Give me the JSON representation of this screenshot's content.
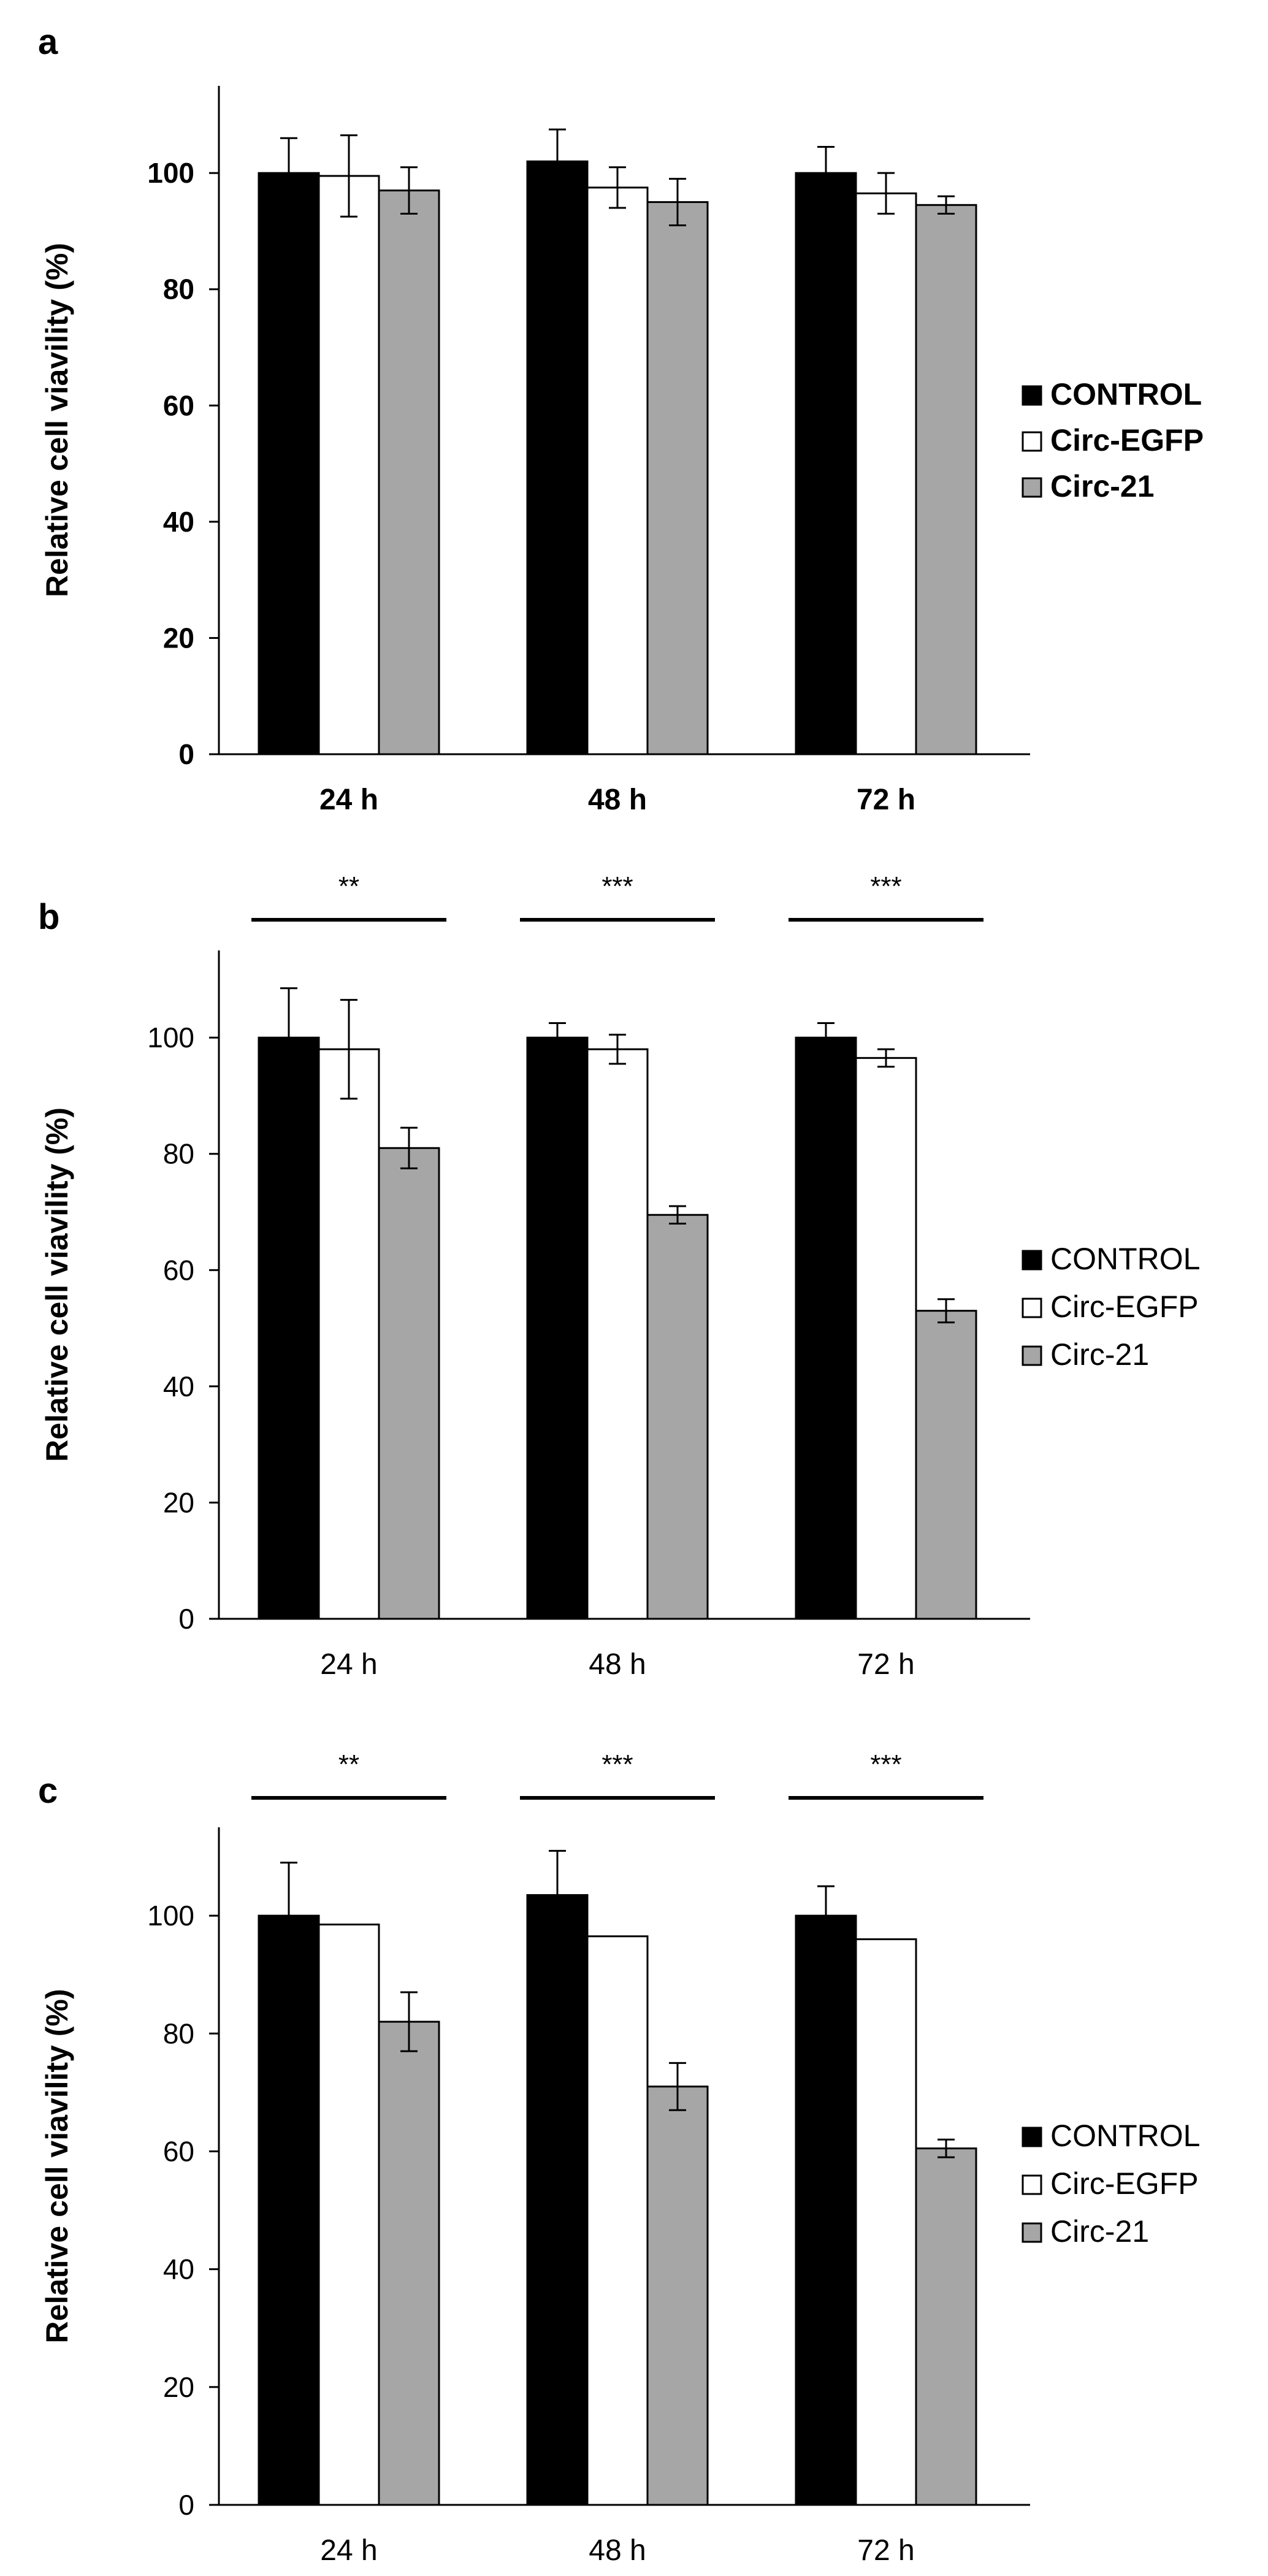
{
  "chart_data": [
    {
      "type": "bar",
      "panel_label": "a",
      "categories": [
        "24 h",
        "48 h",
        "72 h"
      ],
      "series": [
        {
          "name": "CONTROL",
          "color": "#000000",
          "values": [
            100,
            102,
            100
          ],
          "errors": [
            6,
            5.5,
            4.5
          ]
        },
        {
          "name": "Circ-EGFP",
          "color": "#ffffff",
          "values": [
            99.5,
            97.5,
            96.5
          ],
          "errors": [
            7,
            3.5,
            3.5
          ]
        },
        {
          "name": "Circ-21",
          "color": "#a6a6a6",
          "values": [
            97,
            95,
            94.5
          ],
          "errors": [
            4,
            4,
            1.5
          ]
        }
      ],
      "ylabel": "Relative cell viavility (%)",
      "yticks": [
        "0",
        "20",
        "40",
        "60",
        "80",
        "100"
      ],
      "ylim": [
        0,
        115
      ],
      "significance": [],
      "bold_labels": true,
      "legend_position": "right"
    },
    {
      "type": "bar",
      "panel_label": "b",
      "categories": [
        "24 h",
        "48 h",
        "72 h"
      ],
      "series": [
        {
          "name": "CONTROL",
          "color": "#000000",
          "values": [
            100,
            100,
            100
          ],
          "errors": [
            8.5,
            2.5,
            2.5
          ]
        },
        {
          "name": "Circ-EGFP",
          "color": "#ffffff",
          "values": [
            98,
            98,
            96.5
          ],
          "errors": [
            8.5,
            2.5,
            1.5
          ]
        },
        {
          "name": "Circ-21",
          "color": "#a6a6a6",
          "values": [
            81,
            69.5,
            53
          ],
          "errors": [
            3.5,
            1.5,
            2
          ]
        }
      ],
      "ylabel": "Relative cell viavility (%)",
      "yticks": [
        "0",
        "20",
        "40",
        "60",
        "80",
        "100"
      ],
      "ylim": [
        0,
        115
      ],
      "significance": [
        "**",
        "***",
        "***"
      ],
      "bold_labels": false,
      "legend_position": "right"
    },
    {
      "type": "bar",
      "panel_label": "c",
      "categories": [
        "24 h",
        "48 h",
        "72 h"
      ],
      "series": [
        {
          "name": "CONTROL",
          "color": "#000000",
          "values": [
            100,
            103.5,
            100
          ],
          "errors": [
            9,
            7.5,
            5
          ]
        },
        {
          "name": "Circ-EGFP",
          "color": "#ffffff",
          "values": [
            98.5,
            96.5,
            96
          ],
          "errors": [
            0,
            0,
            0
          ]
        },
        {
          "name": "Circ-21",
          "color": "#a6a6a6",
          "values": [
            82,
            71,
            60.5
          ],
          "errors": [
            5,
            4,
            1.5
          ]
        }
      ],
      "ylabel": "Relative cell viavility (%)",
      "yticks": [
        "0",
        "20",
        "40",
        "60",
        "80",
        "100"
      ],
      "ylim": [
        0,
        115
      ],
      "significance": [
        "**",
        "***",
        "***"
      ],
      "bold_labels": false,
      "legend_position": "right"
    }
  ]
}
